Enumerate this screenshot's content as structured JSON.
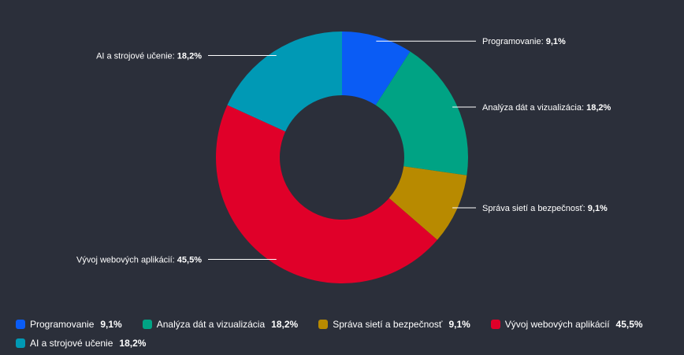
{
  "chart_data": {
    "type": "pie",
    "variant": "donut",
    "legend_position": "bottom",
    "slices": [
      {
        "label": "Programovanie",
        "value": 9.1,
        "display": "9,1%",
        "color": "#0a5cf5"
      },
      {
        "label": "Analýza dát a vizualizácia",
        "value": 18.2,
        "display": "18,2%",
        "color": "#00a384"
      },
      {
        "label": "Správa sietí a bezpečnosť",
        "value": 9.1,
        "display": "9,1%",
        "color": "#b88a00"
      },
      {
        "label": "Vývoj webových aplikácií",
        "value": 45.5,
        "display": "45,5%",
        "color": "#e00029"
      },
      {
        "label": "AI a strojové učenie",
        "value": 18.2,
        "display": "18,2%",
        "color": "#0099b5"
      }
    ]
  }
}
